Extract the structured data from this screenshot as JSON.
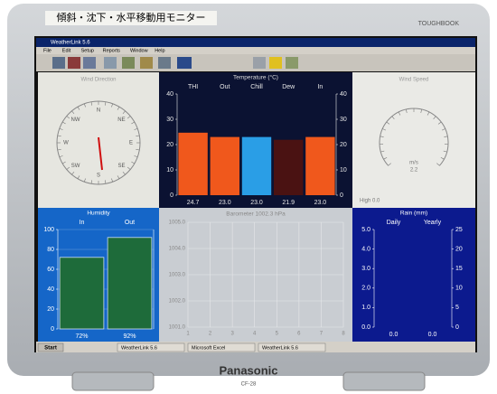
{
  "bezel": {
    "sticker": "傾斜・沈下・水平移動用モニター",
    "brand": "TOUGHBOOK",
    "maker": "Panasonic",
    "model": "CF-28"
  },
  "window": {
    "title": "WeatherLink 5.6",
    "menu": [
      "File",
      "Edit",
      "Setup",
      "Reports",
      "Window",
      "Help"
    ]
  },
  "wind_direction": {
    "title": "Wind Direction",
    "labels": [
      "N",
      "NE",
      "E",
      "SE",
      "S",
      "SW",
      "W",
      "NW"
    ]
  },
  "temperature": {
    "title": "Temperature (°C)",
    "categories": [
      "THI",
      "Out",
      "Chill",
      "Dew",
      "In"
    ],
    "values": [
      24.7,
      23.0,
      23.0,
      21.9,
      23.0
    ],
    "value_labels": [
      "24.7",
      "23.0",
      "23.0",
      "21.9",
      "23.0"
    ],
    "colors": [
      "#f0581c",
      "#f0581c",
      "#2a9ee6",
      "#4a1212",
      "#f0581c"
    ],
    "ylim": [
      0,
      40
    ],
    "yticks": [
      0,
      10,
      20,
      30,
      40
    ]
  },
  "wind_speed": {
    "title": "Wind Speed",
    "unit": "m/s",
    "value": 2.2,
    "high": "High 0.0"
  },
  "humidity": {
    "title": "Humidity",
    "categories": [
      "In",
      "Out"
    ],
    "values": [
      72,
      92
    ],
    "value_labels": [
      "72%",
      "92%"
    ],
    "color": "#1e6b3a",
    "ylim": [
      0,
      100
    ],
    "yticks": [
      0,
      20,
      40,
      60,
      80,
      100
    ]
  },
  "barometer": {
    "title": "Barometer 1002.3 hPa",
    "ylim": [
      1001,
      1005
    ],
    "yticks": [
      {
        "value": 1001,
        "label": "1001.0"
      },
      {
        "value": 1002,
        "label": "1002.0"
      },
      {
        "value": 1003,
        "label": "1003.0"
      },
      {
        "value": 1004,
        "label": "1004.0"
      },
      {
        "value": 1005,
        "label": "1005.0"
      }
    ],
    "xlim": [
      1,
      8
    ],
    "xticks": [
      1,
      2,
      3,
      4,
      5,
      6,
      7,
      8
    ]
  },
  "rain": {
    "title": "Rain (mm)",
    "categories": [
      "Daily",
      "Yearly"
    ],
    "values": [
      0,
      0
    ],
    "value_labels": [
      "0.0",
      "0.0"
    ],
    "ylim": [
      0,
      5
    ],
    "yticks": [
      {
        "value": 0,
        "label": "0.0"
      },
      {
        "value": 1,
        "label": "1.0"
      },
      {
        "value": 2,
        "label": "2.0"
      },
      {
        "value": 3,
        "label": "3.0"
      },
      {
        "value": 4,
        "label": "4.0"
      },
      {
        "value": 5,
        "label": "5.0"
      }
    ],
    "y2lim": [
      0,
      25
    ],
    "y2ticks": [
      0,
      5,
      10,
      15,
      20,
      25
    ]
  },
  "taskbar": {
    "start": "Start",
    "items": [
      "WeatherLink 5.6",
      "Microsoft Excel",
      "WeatherLink 5.6"
    ]
  }
}
